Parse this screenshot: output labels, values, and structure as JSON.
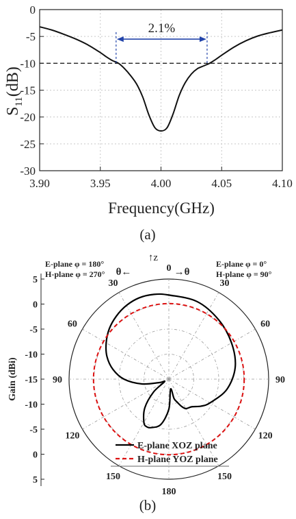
{
  "chart_data": [
    {
      "type": "line",
      "panel_label": "(a)",
      "xlabel": "Frequency(GHz)",
      "ylabel_main": "S",
      "ylabel_sub": "11",
      "ylabel_tail": "(dB)",
      "xlim": [
        3.9,
        4.1
      ],
      "ylim": [
        -30,
        0
      ],
      "x_ticks": [
        "3.90",
        "3.95",
        "4.00",
        "4.05",
        "4.10"
      ],
      "y_ticks": [
        "0",
        "-5",
        "-10",
        "-15",
        "-20",
        "-25",
        "-30"
      ],
      "grid": true,
      "series": [
        {
          "x": [
            3.9,
            3.91,
            3.92,
            3.93,
            3.94,
            3.95,
            3.955,
            3.96,
            3.965,
            3.97,
            3.975,
            3.98,
            3.985,
            3.99,
            3.995,
            4.0,
            4.005,
            4.01,
            4.015,
            4.02,
            4.025,
            4.03,
            4.035,
            4.04,
            4.045,
            4.05,
            4.06,
            4.07,
            4.08,
            4.09,
            4.1
          ],
          "y": [
            -3.2,
            -3.8,
            -4.6,
            -5.5,
            -6.6,
            -8.0,
            -8.8,
            -9.5,
            -10.0,
            -11.0,
            -12.3,
            -13.9,
            -16.3,
            -19.6,
            -22.0,
            -22.6,
            -22.0,
            -19.4,
            -16.0,
            -13.6,
            -12.0,
            -11.0,
            -10.5,
            -10.0,
            -9.3,
            -8.5,
            -7.0,
            -5.8,
            -4.9,
            -4.3,
            -3.8
          ]
        }
      ],
      "reference_line": -10,
      "bandwidth_annotation": {
        "label": "2.1%",
        "x_start": 3.963,
        "x_end": 4.038,
        "y": -5.5
      }
    },
    {
      "type": "polar",
      "panel_label": "(b)",
      "ylabel": "Gain (dBi)",
      "radial_ticks": [
        "5",
        "0",
        "-5",
        "-10",
        "-15",
        "-10",
        "-5",
        "0",
        "5"
      ],
      "radial_range": [
        -15,
        5
      ],
      "angle_labels": [
        "0",
        "30",
        "60",
        "90",
        "120",
        "150",
        "180",
        "150",
        "120",
        "90",
        "60",
        "30"
      ],
      "top_axis_label": "↑z",
      "left_theta_label": "θ←",
      "right_theta_label": "→θ",
      "left_plane_info": [
        "E-plane φ = 180°",
        "H-plane φ = 270°"
      ],
      "right_plane_info": [
        "E-plane φ = 0°",
        "H-plane φ = 90°"
      ],
      "legend_placement": "bottom",
      "series": [
        {
          "name": "E-plane XOZ plane",
          "color": "#000000",
          "style": "solid",
          "theta": [
            0,
            20,
            40,
            60,
            80,
            100,
            120,
            130,
            140,
            150,
            155,
            160,
            165,
            170,
            180,
            190,
            200,
            205,
            210,
            220,
            230,
            240,
            250,
            260,
            270,
            280,
            290,
            300,
            310,
            320,
            330,
            340,
            350,
            360
          ],
          "gain": [
            1.8,
            1.5,
            0.5,
            -0.5,
            -1.5,
            -3.2,
            -5.5,
            -6.6,
            -7.8,
            -8.2,
            -9.0,
            -10.1,
            -11.0,
            -13.0,
            -9.0,
            -5.8,
            -4.7,
            -4.5,
            -5.0,
            -7.5,
            -11.0,
            -14.0,
            -13.0,
            -9.5,
            -6.0,
            -3.6,
            -1.8,
            -0.5,
            0.6,
            1.4,
            2.0,
            2.3,
            2.2,
            1.8
          ]
        },
        {
          "name": "H-plane YOZ plane",
          "color": "#dd1111",
          "style": "dashed",
          "theta": [
            0,
            360
          ],
          "gain": [
            0.1,
            0.1
          ]
        }
      ]
    }
  ]
}
